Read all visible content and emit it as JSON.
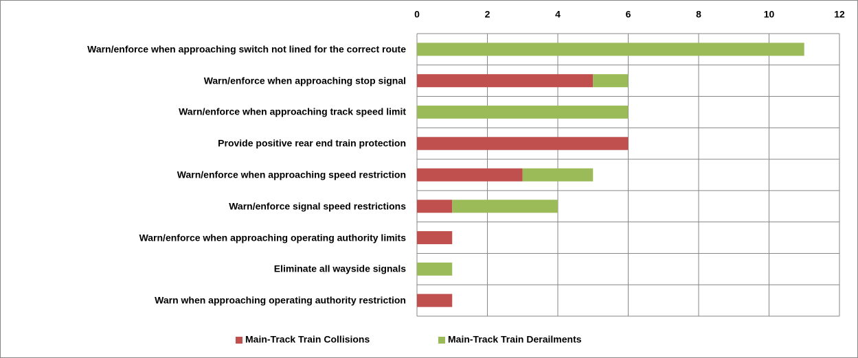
{
  "chart_data": {
    "type": "bar",
    "orientation": "horizontal",
    "stacked": true,
    "categories": [
      "Warn/enforce when approaching switch not lined for the correct route",
      "Warn/enforce when approaching stop signal",
      "Warn/enforce when approaching track speed limit",
      "Provide positive rear end train protection",
      "Warn/enforce when approaching speed restriction",
      "Warn/enforce signal speed restrictions",
      "Warn/enforce when approaching operating authority limits",
      "Eliminate all wayside signals",
      "Warn when approaching operating authority restriction"
    ],
    "series": [
      {
        "name": "Main-Track Train Collisions",
        "color": "#c0504d",
        "values": [
          0,
          5,
          0,
          6,
          3,
          1,
          1,
          0,
          1
        ]
      },
      {
        "name": "Main-Track Train Derailments",
        "color": "#9bbb59",
        "values": [
          11,
          1,
          6,
          0,
          2,
          3,
          0,
          1,
          0
        ]
      }
    ],
    "xlim": [
      0,
      12
    ],
    "xticks": [
      0,
      2,
      4,
      6,
      8,
      10,
      12
    ],
    "grid": true,
    "legend": "bottom"
  }
}
